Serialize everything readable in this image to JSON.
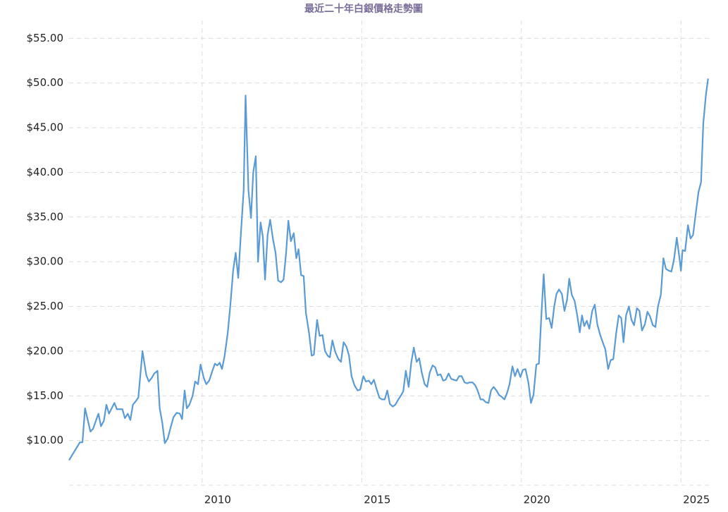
{
  "chart_data": {
    "type": "line",
    "title": "最近二十年白銀價格走勢圖",
    "x": [
      2005.83,
      2006.0,
      2006.17,
      2006.25,
      2006.33,
      2006.5,
      2006.58,
      2006.75,
      2006.83,
      2006.92,
      2007.0,
      2007.08,
      2007.25,
      2007.33,
      2007.5,
      2007.58,
      2007.67,
      2007.75,
      2007.83,
      2007.92,
      2008.0,
      2008.13,
      2008.25,
      2008.33,
      2008.42,
      2008.5,
      2008.6,
      2008.67,
      2008.75,
      2008.83,
      2008.92,
      2009.0,
      2009.1,
      2009.2,
      2009.3,
      2009.37,
      2009.45,
      2009.52,
      2009.6,
      2009.7,
      2009.78,
      2009.87,
      2009.95,
      2010.05,
      2010.13,
      2010.22,
      2010.32,
      2010.4,
      2010.47,
      2010.55,
      2010.62,
      2010.7,
      2010.8,
      2010.88,
      2010.97,
      2011.05,
      2011.13,
      2011.22,
      2011.3,
      2011.36,
      2011.45,
      2011.53,
      2011.6,
      2011.68,
      2011.75,
      2011.83,
      2011.9,
      2011.97,
      2012.05,
      2012.13,
      2012.22,
      2012.3,
      2012.38,
      2012.47,
      2012.55,
      2012.63,
      2012.7,
      2012.78,
      2012.87,
      2012.95,
      2013.02,
      2013.1,
      2013.18,
      2013.25,
      2013.35,
      2013.43,
      2013.5,
      2013.6,
      2013.68,
      2013.77,
      2013.85,
      2013.93,
      2014.0,
      2014.08,
      2014.17,
      2014.27,
      2014.35,
      2014.43,
      2014.52,
      2014.6,
      2014.68,
      2014.77,
      2014.87,
      2014.95,
      2015.05,
      2015.13,
      2015.22,
      2015.3,
      2015.38,
      2015.47,
      2015.55,
      2015.63,
      2015.72,
      2015.8,
      2015.88,
      2015.97,
      2016.05,
      2016.13,
      2016.22,
      2016.3,
      2016.38,
      2016.47,
      2016.55,
      2016.63,
      2016.72,
      2016.8,
      2016.88,
      2016.97,
      2017.05,
      2017.13,
      2017.22,
      2017.3,
      2017.38,
      2017.47,
      2017.55,
      2017.63,
      2017.72,
      2017.8,
      2017.88,
      2017.97,
      2018.05,
      2018.13,
      2018.22,
      2018.3,
      2018.38,
      2018.47,
      2018.55,
      2018.63,
      2018.72,
      2018.8,
      2018.88,
      2018.97,
      2019.05,
      2019.13,
      2019.22,
      2019.3,
      2019.38,
      2019.47,
      2019.55,
      2019.63,
      2019.72,
      2019.8,
      2019.88,
      2019.97,
      2020.05,
      2020.13,
      2020.22,
      2020.3,
      2020.38,
      2020.47,
      2020.55,
      2020.63,
      2020.7,
      2020.78,
      2020.87,
      2020.95,
      2021.03,
      2021.1,
      2021.18,
      2021.27,
      2021.35,
      2021.43,
      2021.5,
      2021.58,
      2021.67,
      2021.75,
      2021.83,
      2021.9,
      2021.97,
      2022.05,
      2022.13,
      2022.22,
      2022.3,
      2022.38,
      2022.47,
      2022.55,
      2022.63,
      2022.72,
      2022.8,
      2022.88,
      2022.97,
      2023.05,
      2023.13,
      2023.2,
      2023.28,
      2023.37,
      2023.45,
      2023.53,
      2023.62,
      2023.7,
      2023.78,
      2023.87,
      2023.95,
      2024.03,
      2024.12,
      2024.2,
      2024.28,
      2024.37,
      2024.45,
      2024.53,
      2024.62,
      2024.7,
      2024.78,
      2024.87,
      2024.95,
      2025.0,
      2025.05,
      2025.13,
      2025.22,
      2025.3,
      2025.38,
      2025.47,
      2025.55,
      2025.63,
      2025.7,
      2025.78,
      2025.85
    ],
    "series": [
      {
        "color": "#5b9bd5",
        "values": [
          7.8,
          8.8,
          9.8,
          9.8,
          13.6,
          11.0,
          11.3,
          13.0,
          11.6,
          12.2,
          14.0,
          13.0,
          14.2,
          13.5,
          13.5,
          12.5,
          13.0,
          12.3,
          14.0,
          14.4,
          14.8,
          20.0,
          17.3,
          16.6,
          17.0,
          17.5,
          17.8,
          13.6,
          12.0,
          9.7,
          10.2,
          11.3,
          12.6,
          13.1,
          13.0,
          12.4,
          15.6,
          13.6,
          14.0,
          15.0,
          16.6,
          16.3,
          18.5,
          17.0,
          16.3,
          16.7,
          17.8,
          18.6,
          18.4,
          18.7,
          18.0,
          19.4,
          22.0,
          25.0,
          29.0,
          31.0,
          28.2,
          33.5,
          38.0,
          48.6,
          38.0,
          34.9,
          40.0,
          41.8,
          30.0,
          34.4,
          32.8,
          28.0,
          33.0,
          34.7,
          32.5,
          31.0,
          27.9,
          27.7,
          28.0,
          31.0,
          34.6,
          32.3,
          33.2,
          30.4,
          31.4,
          28.5,
          28.4,
          24.3,
          22.0,
          19.5,
          19.6,
          23.5,
          21.7,
          21.8,
          20.0,
          19.5,
          19.3,
          21.2,
          19.9,
          19.1,
          18.8,
          21.0,
          20.5,
          19.5,
          17.2,
          16.2,
          15.6,
          15.7,
          17.2,
          16.6,
          16.7,
          16.3,
          16.8,
          15.7,
          14.8,
          14.6,
          14.6,
          15.6,
          14.1,
          13.8,
          14.0,
          14.5,
          15.0,
          15.5,
          17.8,
          16.0,
          18.7,
          20.4,
          18.8,
          19.2,
          17.6,
          16.3,
          16.0,
          17.6,
          18.4,
          18.2,
          17.3,
          17.4,
          16.7,
          16.8,
          17.5,
          16.9,
          16.8,
          16.7,
          17.2,
          17.2,
          16.5,
          16.4,
          16.5,
          16.5,
          16.2,
          15.6,
          14.6,
          14.6,
          14.3,
          14.2,
          15.6,
          16.0,
          15.6,
          15.1,
          14.9,
          14.6,
          15.3,
          16.3,
          18.3,
          17.2,
          18.0,
          17.1,
          17.9,
          18.0,
          16.5,
          14.2,
          15.1,
          18.5,
          18.6,
          24.2,
          28.6,
          23.6,
          23.7,
          22.6,
          25.0,
          26.4,
          26.9,
          26.4,
          24.5,
          25.7,
          28.1,
          26.3,
          25.6,
          24.0,
          22.1,
          24.0,
          22.8,
          23.4,
          22.5,
          24.5,
          25.2,
          23.0,
          21.8,
          21.0,
          20.2,
          18.0,
          19.0,
          19.1,
          22.0,
          24.0,
          23.7,
          21.0,
          24.0,
          25.0,
          23.5,
          22.9,
          24.8,
          24.5,
          22.3,
          23.0,
          24.4,
          23.9,
          22.9,
          22.7,
          25.0,
          26.3,
          30.4,
          29.2,
          29.0,
          28.9,
          30.2,
          32.7,
          30.5,
          29.0,
          31.3,
          31.2,
          34.1,
          32.6,
          33.0,
          35.6,
          37.8,
          38.9,
          45.5,
          48.6,
          50.5
        ]
      }
    ],
    "xlim": [
      2005.83,
      2025.9
    ],
    "xticks": [
      2010,
      2015,
      2020,
      2025
    ],
    "ylim": [
      5,
      57
    ],
    "yticks": [
      {
        "value": 10,
        "label": "$10.00"
      },
      {
        "value": 15,
        "label": "$15.00"
      },
      {
        "value": 20,
        "label": "$20.00"
      },
      {
        "value": 25,
        "label": "$25.00"
      },
      {
        "value": 30,
        "label": "$30.00"
      },
      {
        "value": 35,
        "label": "$35.00"
      },
      {
        "value": 40,
        "label": "$40.00"
      },
      {
        "value": 45,
        "label": "$45.00"
      },
      {
        "value": 50,
        "label": "$50.00"
      },
      {
        "value": 55,
        "label": "$55.00"
      }
    ],
    "grid": true
  }
}
